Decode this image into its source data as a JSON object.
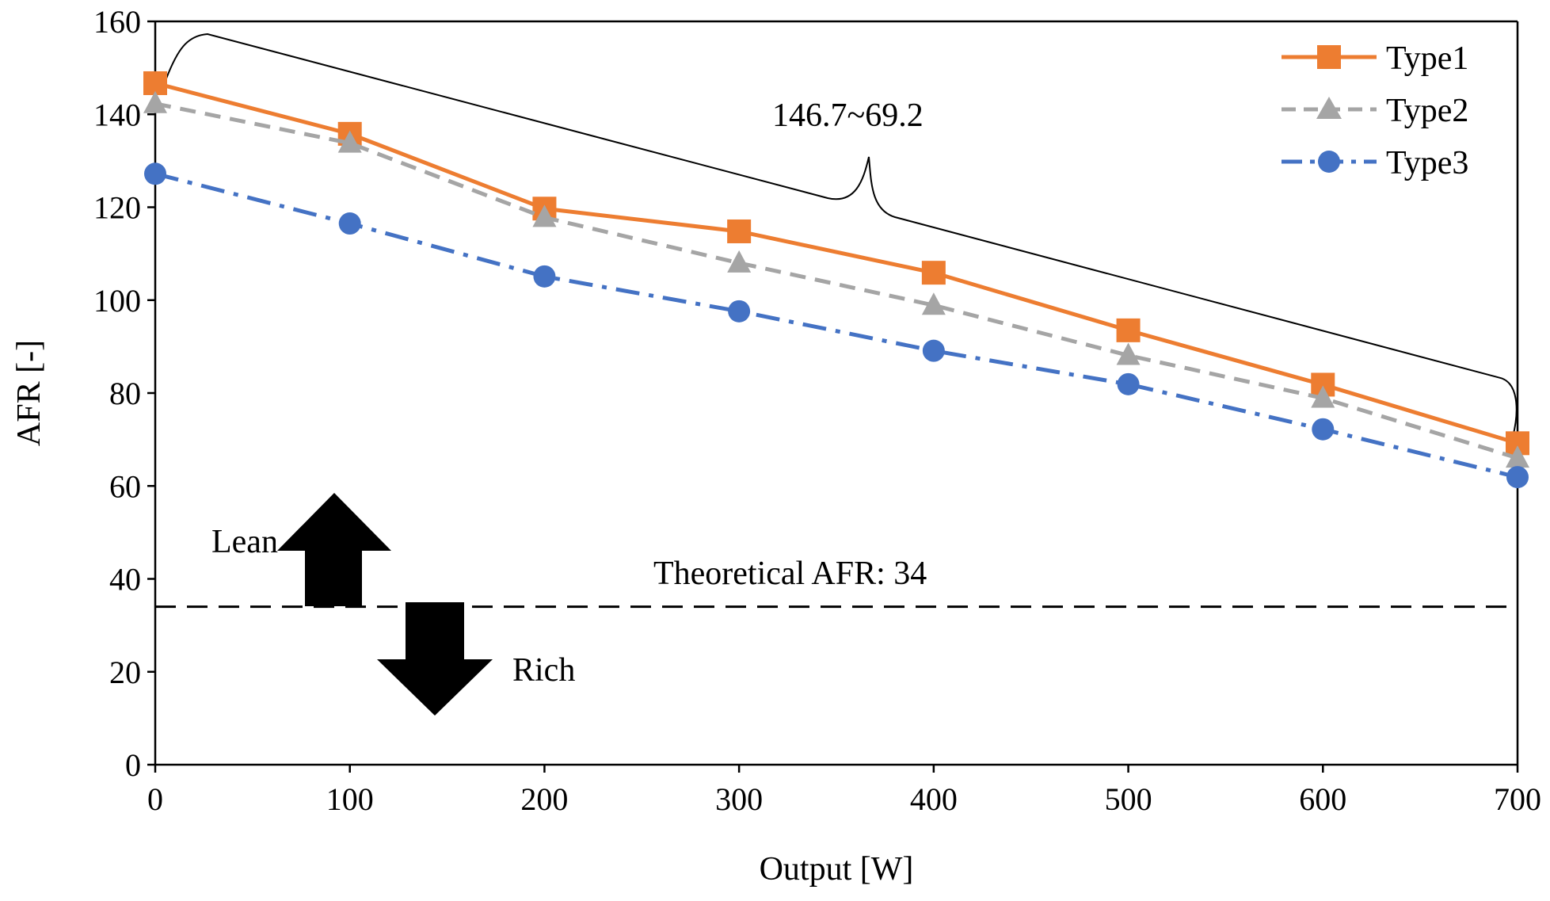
{
  "chart_data": {
    "type": "line",
    "title": "",
    "xlabel": "Output [W]",
    "ylabel": "AFR [-]",
    "xlim": [
      0,
      700
    ],
    "ylim": [
      0,
      160
    ],
    "x_ticks": [
      0,
      100,
      200,
      300,
      400,
      500,
      600,
      700
    ],
    "y_ticks": [
      0,
      20,
      40,
      60,
      80,
      100,
      120,
      140,
      160
    ],
    "x_tick_labels": [
      "0",
      "100",
      "200",
      "300",
      "400",
      "500",
      "600",
      "700"
    ],
    "y_tick_labels": [
      "0",
      "20",
      "40",
      "60",
      "80",
      "100",
      "120",
      "140",
      "160"
    ],
    "grid": false,
    "legend_position": "top-right",
    "x": [
      0,
      100,
      200,
      300,
      400,
      500,
      600,
      700
    ],
    "series": [
      {
        "name": "Type1",
        "values": [
          146.7,
          135.8,
          119.7,
          114.8,
          105.9,
          93.5,
          81.8,
          69.2
        ],
        "color": "#ED7D31",
        "marker": "square",
        "line_style": "solid"
      },
      {
        "name": "Type2",
        "values": [
          142.3,
          133.8,
          117.8,
          108.0,
          98.9,
          88.1,
          78.9,
          66.0
        ],
        "color": "#A5A5A5",
        "marker": "triangle",
        "line_style": "dashed"
      },
      {
        "name": "Type3",
        "values": [
          127.2,
          116.5,
          105.1,
          97.6,
          89.1,
          81.9,
          72.2,
          61.9
        ],
        "color": "#4472C4",
        "marker": "circle",
        "line_style": "dashdot"
      }
    ],
    "reference_line": {
      "value": 34,
      "label": "Theoretical AFR: 34",
      "color": "#000000"
    },
    "annotations": {
      "range_label": "146.7~69.2",
      "lean_label": "Lean",
      "rich_label": "Rich"
    }
  }
}
